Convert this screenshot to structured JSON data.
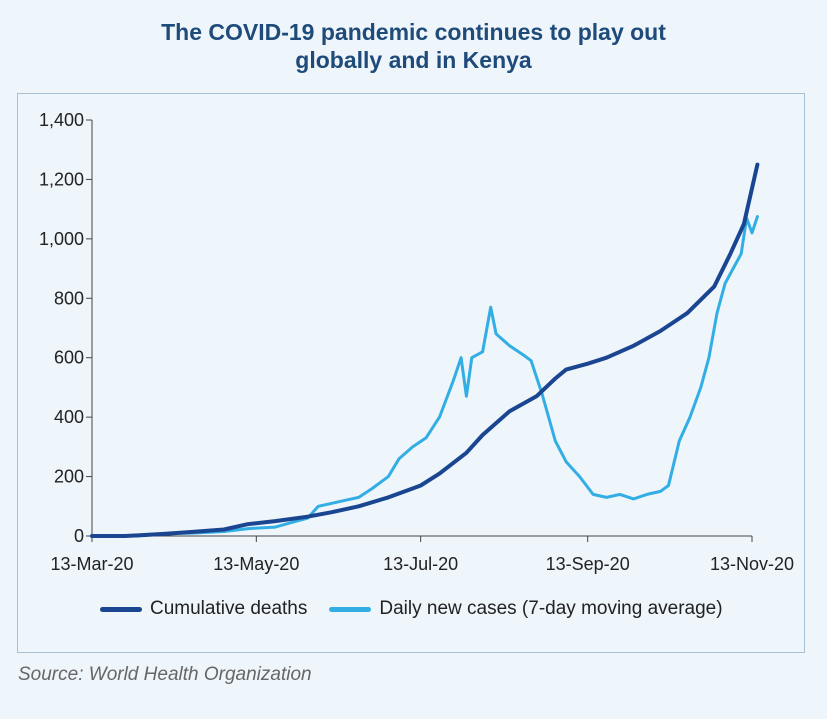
{
  "title_lines": [
    "The COVID-19 pandemic continues to play out",
    "globally and in Kenya"
  ],
  "source": "Source: World Health Organization",
  "colors": {
    "deaths": "#1a4590",
    "cases": "#33aee5",
    "axis": "#444444"
  },
  "chart_data": {
    "type": "line",
    "title": "The COVID-19 pandemic continues to play out globally and in Kenya",
    "xlabel": "",
    "ylabel": "",
    "ylim": [
      0,
      1400
    ],
    "xlim": [
      "2020-03-13",
      "2020-11-13"
    ],
    "yticks": [
      0,
      200,
      400,
      600,
      800,
      1000,
      1200,
      1400
    ],
    "ytick_labels": [
      "0",
      "200",
      "400",
      "600",
      "800",
      "1,000",
      "1,200",
      "1,400"
    ],
    "xticks": [
      "2020-03-13",
      "2020-05-13",
      "2020-07-13",
      "2020-09-13",
      "2020-11-13"
    ],
    "xtick_labels": [
      "13-Mar-20",
      "13-May-20",
      "13-Jul-20",
      "13-Sep-20",
      "13-Nov-20"
    ],
    "grid": false,
    "legend_position": "bottom",
    "series": [
      {
        "name": "Cumulative deaths",
        "color": "#1a4590",
        "points": [
          [
            "2020-03-13",
            0
          ],
          [
            "2020-03-25",
            0
          ],
          [
            "2020-04-01",
            3
          ],
          [
            "2020-04-10",
            8
          ],
          [
            "2020-04-20",
            14
          ],
          [
            "2020-05-01",
            22
          ],
          [
            "2020-05-10",
            40
          ],
          [
            "2020-05-20",
            50
          ],
          [
            "2020-06-01",
            65
          ],
          [
            "2020-06-10",
            80
          ],
          [
            "2020-06-20",
            100
          ],
          [
            "2020-07-01",
            130
          ],
          [
            "2020-07-10",
            160
          ],
          [
            "2020-07-13",
            170
          ],
          [
            "2020-07-20",
            210
          ],
          [
            "2020-07-30",
            280
          ],
          [
            "2020-08-05",
            340
          ],
          [
            "2020-08-15",
            420
          ],
          [
            "2020-08-25",
            470
          ],
          [
            "2020-09-01",
            530
          ],
          [
            "2020-09-05",
            560
          ],
          [
            "2020-09-13",
            580
          ],
          [
            "2020-09-20",
            600
          ],
          [
            "2020-09-30",
            640
          ],
          [
            "2020-10-10",
            690
          ],
          [
            "2020-10-20",
            750
          ],
          [
            "2020-10-30",
            840
          ],
          [
            "2020-11-05",
            950
          ],
          [
            "2020-11-10",
            1050
          ],
          [
            "2020-11-15",
            1250
          ]
        ]
      },
      {
        "name": "Daily new cases (7-day moving average)",
        "color": "#33aee5",
        "points": [
          [
            "2020-03-13",
            0
          ],
          [
            "2020-03-30",
            0
          ],
          [
            "2020-04-01",
            5
          ],
          [
            "2020-04-10",
            8
          ],
          [
            "2020-04-20",
            10
          ],
          [
            "2020-05-01",
            15
          ],
          [
            "2020-05-10",
            25
          ],
          [
            "2020-05-20",
            30
          ],
          [
            "2020-05-28",
            50
          ],
          [
            "2020-06-01",
            60
          ],
          [
            "2020-06-05",
            100
          ],
          [
            "2020-06-10",
            110
          ],
          [
            "2020-06-15",
            120
          ],
          [
            "2020-06-20",
            130
          ],
          [
            "2020-06-25",
            160
          ],
          [
            "2020-07-01",
            200
          ],
          [
            "2020-07-05",
            260
          ],
          [
            "2020-07-10",
            300
          ],
          [
            "2020-07-15",
            330
          ],
          [
            "2020-07-20",
            400
          ],
          [
            "2020-07-25",
            520
          ],
          [
            "2020-07-28",
            600
          ],
          [
            "2020-07-30",
            470
          ],
          [
            "2020-08-01",
            600
          ],
          [
            "2020-08-05",
            620
          ],
          [
            "2020-08-08",
            770
          ],
          [
            "2020-08-10",
            680
          ],
          [
            "2020-08-15",
            640
          ],
          [
            "2020-08-20",
            610
          ],
          [
            "2020-08-23",
            590
          ],
          [
            "2020-08-27",
            480
          ],
          [
            "2020-09-01",
            320
          ],
          [
            "2020-09-05",
            250
          ],
          [
            "2020-09-10",
            200
          ],
          [
            "2020-09-15",
            140
          ],
          [
            "2020-09-20",
            130
          ],
          [
            "2020-09-25",
            140
          ],
          [
            "2020-09-30",
            125
          ],
          [
            "2020-10-05",
            140
          ],
          [
            "2020-10-10",
            150
          ],
          [
            "2020-10-13",
            170
          ],
          [
            "2020-10-17",
            320
          ],
          [
            "2020-10-21",
            400
          ],
          [
            "2020-10-25",
            500
          ],
          [
            "2020-10-28",
            600
          ],
          [
            "2020-10-31",
            750
          ],
          [
            "2020-11-03",
            850
          ],
          [
            "2020-11-06",
            900
          ],
          [
            "2020-11-09",
            950
          ],
          [
            "2020-11-11",
            1070
          ],
          [
            "2020-11-13",
            1020
          ],
          [
            "2020-11-15",
            1075
          ]
        ]
      }
    ]
  }
}
